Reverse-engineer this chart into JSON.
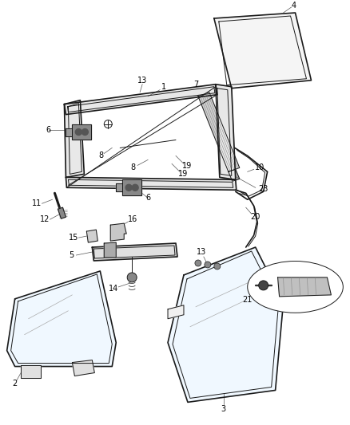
{
  "bg_color": "#ffffff",
  "line_color": "#1a1a1a",
  "label_color": "#000000",
  "fig_width": 4.38,
  "fig_height": 5.33,
  "dpi": 100
}
